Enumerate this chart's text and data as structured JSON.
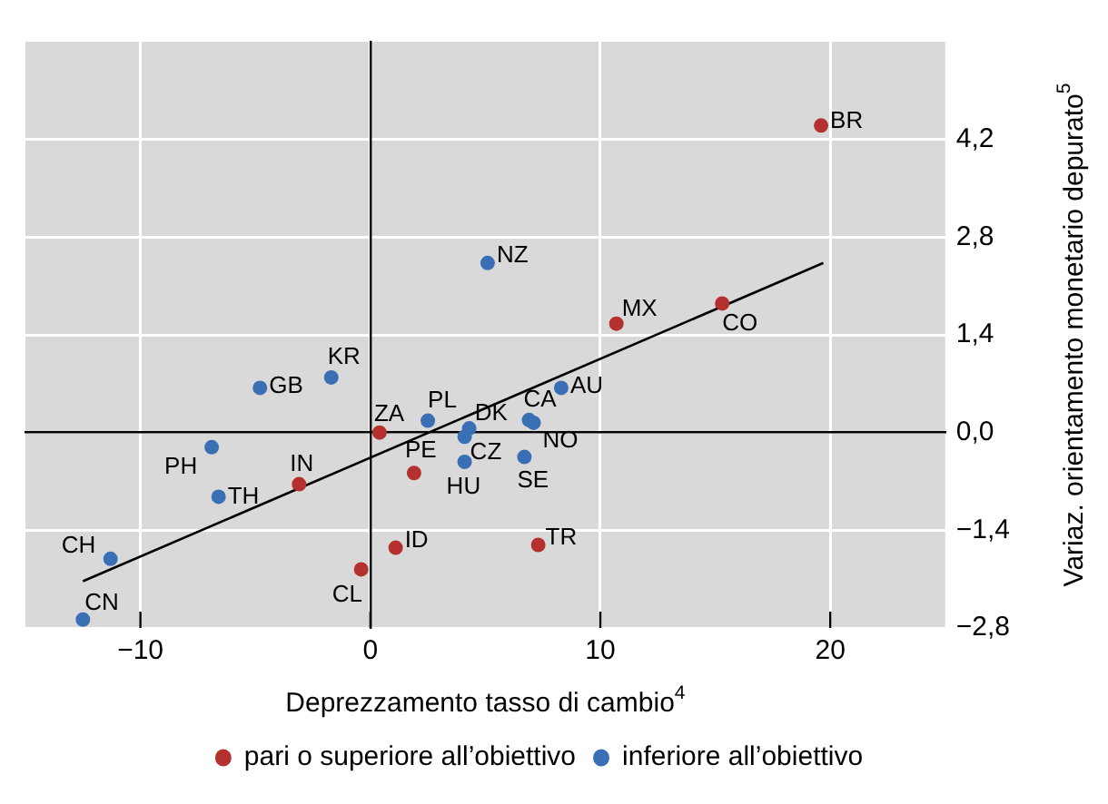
{
  "chart_data": {
    "type": "scatter",
    "xlabel": "Deprezzamento tasso di cambio$^{4}$",
    "ylabel": "Variaz. orientamento monetario depurato$^{5}$",
    "series": [
      {
        "name": "pari o superiore all’obiettivo",
        "color": "#b5312f",
        "x": [
          19.6,
          10.7,
          15.3,
          0.4,
          -3.1,
          1.9,
          1.1,
          -0.4,
          7.3
        ],
        "values": [
          4.4,
          1.56,
          1.85,
          0.0,
          -0.74,
          -0.58,
          -1.65,
          -1.96,
          -1.61
        ]
      },
      {
        "name": "inferiore all’obiettivo",
        "color": "#3a6fb5",
        "x": [
          5.1,
          -4.8,
          -1.7,
          2.5,
          4.3,
          4.1,
          6.9,
          8.3,
          7.1,
          4.1,
          6.7,
          -6.9,
          -6.6,
          -11.3,
          -12.5
        ],
        "values": [
          2.43,
          0.64,
          0.79,
          0.17,
          0.06,
          -0.06,
          0.18,
          0.64,
          0.14,
          -0.42,
          -0.35,
          -0.21,
          -0.92,
          -1.81,
          -2.68
        ]
      },
      {
        "type": "line",
        "color": "#000000",
        "marker": "none",
        "x": [
          -12.5,
          19.7
        ],
        "values": [
          -2.13,
          2.43
        ]
      }
    ],
    "annotations": [
      {
        "text": "BR",
        "x": 19.6,
        "y": 4.4
      },
      {
        "text": "MX",
        "x": 10.7,
        "y": 1.56
      },
      {
        "text": "CO",
        "x": 15.3,
        "y": 1.85
      },
      {
        "text": "ZA",
        "x": 0.4,
        "y": 0.0
      },
      {
        "text": "IN",
        "x": -3.1,
        "y": -0.74
      },
      {
        "text": "PE",
        "x": 1.9,
        "y": -0.58
      },
      {
        "text": "ID",
        "x": 1.1,
        "y": -1.65
      },
      {
        "text": "CL",
        "x": -0.4,
        "y": -1.96
      },
      {
        "text": "TR",
        "x": 7.3,
        "y": -1.61
      },
      {
        "text": "NZ",
        "x": 5.1,
        "y": 2.43
      },
      {
        "text": "GB",
        "x": -4.8,
        "y": 0.64
      },
      {
        "text": "KR",
        "x": -1.7,
        "y": 0.79
      },
      {
        "text": "PL",
        "x": 2.5,
        "y": 0.17
      },
      {
        "text": "DK",
        "x": 4.3,
        "y": 0.06
      },
      {
        "text": "CZ",
        "x": 4.1,
        "y": -0.06
      },
      {
        "text": "CA",
        "x": 6.9,
        "y": 0.18
      },
      {
        "text": "AU",
        "x": 8.3,
        "y": 0.64
      },
      {
        "text": "NO",
        "x": 7.1,
        "y": 0.14
      },
      {
        "text": "HU",
        "x": 4.1,
        "y": -0.42
      },
      {
        "text": "SE",
        "x": 6.7,
        "y": -0.35
      },
      {
        "text": "PH",
        "x": -6.9,
        "y": -0.21
      },
      {
        "text": "TH",
        "x": -6.6,
        "y": -0.92
      },
      {
        "text": "CH",
        "x": -11.3,
        "y": -1.81
      },
      {
        "text": "CN",
        "x": -12.5,
        "y": -2.68
      }
    ],
    "xlim": [
      -15,
      25
    ],
    "xticks": [
      {
        "value": -10,
        "label": "−10"
      },
      0,
      10,
      20
    ],
    "ylim": [
      -2.8,
      5.6
    ],
    "yticks": [
      {
        "value": -2.8,
        "label": "−2,8"
      },
      {
        "value": -1.4,
        "label": "−1,4"
      },
      {
        "value": 0,
        "label": "0,0"
      },
      {
        "value": 1.4,
        "label": "1,4"
      },
      {
        "value": 2.8,
        "label": "2,8"
      },
      {
        "value": 4.2,
        "label": "4,2"
      }
    ],
    "grid": true,
    "legend": "bottom",
    "marker": "circle"
  }
}
